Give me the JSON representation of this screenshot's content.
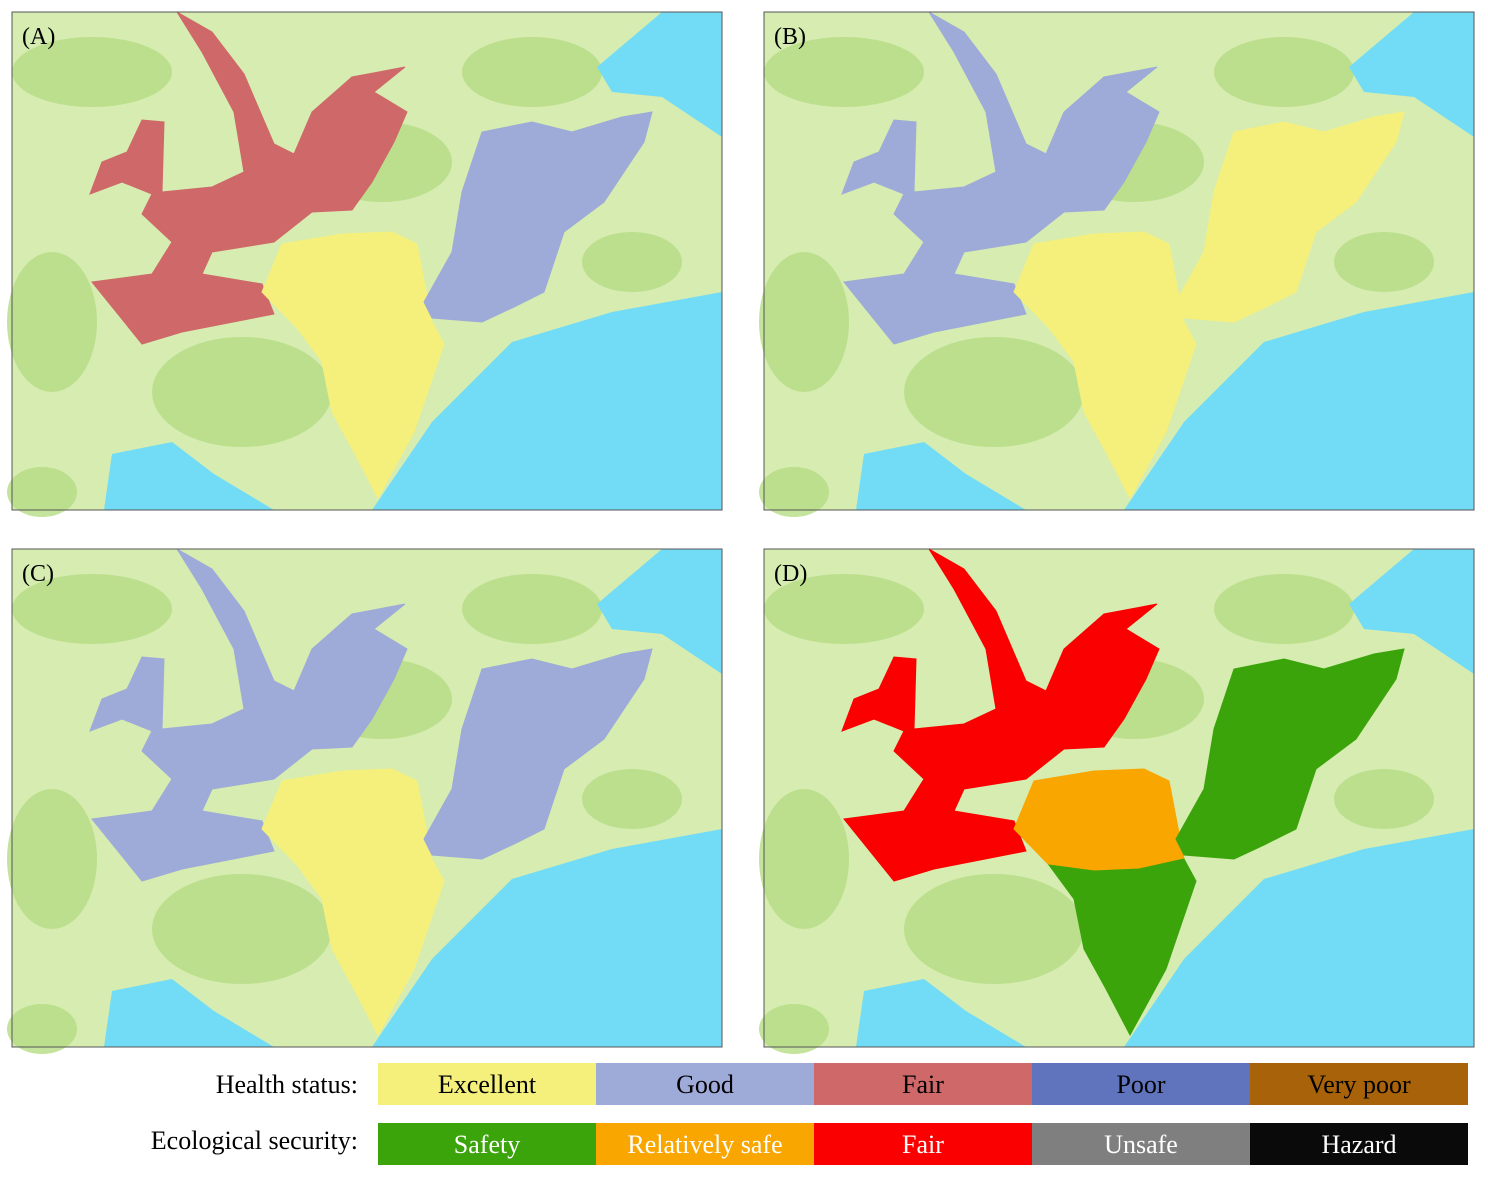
{
  "panels": [
    {
      "label": "(A)"
    },
    {
      "label": "(B)"
    },
    {
      "label": "(C)"
    },
    {
      "label": "(D)"
    }
  ],
  "legend": {
    "health_status": {
      "title": "Health status:",
      "items": [
        {
          "label": "Excellent",
          "color": "#f5f07c"
        },
        {
          "label": "Good",
          "color": "#9eaad8"
        },
        {
          "label": "Fair",
          "color": "#cf6868"
        },
        {
          "label": "Poor",
          "color": "#5f74bd"
        },
        {
          "label": "Very poor",
          "color": "#a8620a"
        }
      ]
    },
    "ecological_security": {
      "title": "Ecological security:",
      "items": [
        {
          "label": "Safety",
          "color": "#3aa40a"
        },
        {
          "label": "Relatively safe",
          "color": "#f9a600"
        },
        {
          "label": "Fair",
          "color": "#fb0000"
        },
        {
          "label": "Unsafe",
          "color": "#7f7f7f"
        },
        {
          "label": "Hazard",
          "color": "#0a0a0a"
        }
      ]
    }
  }
}
